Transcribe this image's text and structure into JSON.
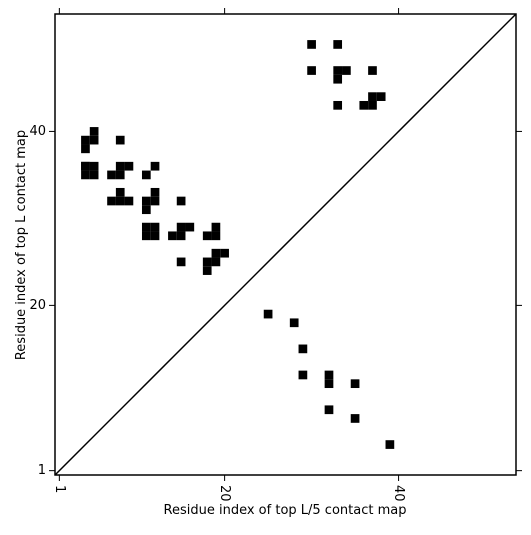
{
  "chart_data": {
    "type": "scatter",
    "marker": "square",
    "color": "#000000",
    "diagonal": true,
    "xlabel": "Residue index of top L/5 contact map",
    "ylabel": "Residue index of top L contact map",
    "xlim": [
      0.5,
      53.5
    ],
    "ylim": [
      0.5,
      53.5
    ],
    "xticks": [
      1,
      20,
      40
    ],
    "yticks": [
      1,
      20,
      40
    ],
    "x": [
      30,
      33,
      30,
      33,
      34,
      33,
      37,
      37,
      38,
      36,
      37,
      33,
      4,
      5,
      4,
      5,
      5,
      4,
      4,
      5,
      4,
      8,
      8,
      9,
      12,
      7,
      8,
      11,
      8,
      12,
      7,
      8,
      9,
      11,
      12,
      15,
      11,
      11,
      12,
      11,
      12,
      14,
      15,
      15,
      16,
      18,
      19,
      19,
      19,
      20,
      18,
      19,
      18,
      15,
      25,
      28,
      29,
      29,
      32,
      32,
      35,
      32,
      35,
      39
    ],
    "y": [
      50,
      50,
      47,
      47,
      47,
      46,
      47,
      44,
      44,
      43,
      43,
      43,
      35,
      35,
      36,
      36,
      40,
      39,
      38,
      39,
      36,
      39,
      36,
      36,
      36,
      35,
      35,
      35,
      33,
      33,
      32,
      32,
      32,
      32,
      32,
      32,
      31,
      28,
      28,
      29,
      29,
      28,
      28,
      29,
      29,
      28,
      28,
      29,
      26,
      26,
      25,
      25,
      24,
      25,
      19,
      18,
      15,
      12,
      12,
      11,
      11,
      8,
      7,
      4
    ]
  }
}
